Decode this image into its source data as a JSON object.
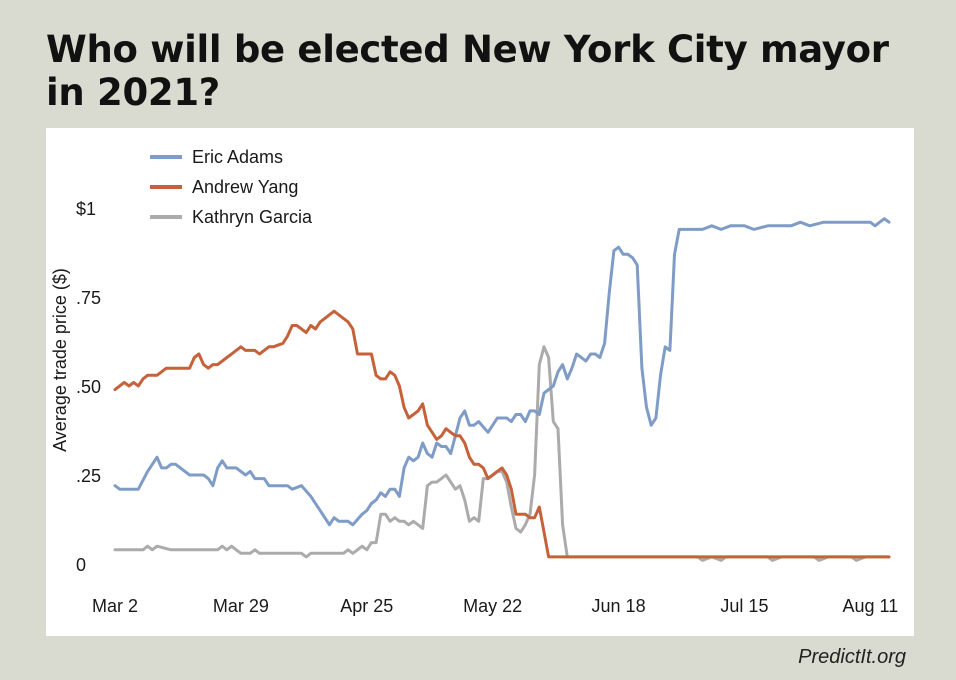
{
  "title": "Who will be elected New York City mayor in 2021?",
  "credit": "PredictIt.org",
  "chart_data": {
    "type": "line",
    "title": "Who will be elected New York City mayor in 2021?",
    "ylabel": "Average trade price ($)",
    "xlabel": "",
    "ylim": [
      0,
      1.08
    ],
    "y_ticks": [
      {
        "value": 0,
        "label": "0"
      },
      {
        "value": 0.25,
        "label": ".25"
      },
      {
        "value": 0.5,
        "label": ".50"
      },
      {
        "value": 0.75,
        "label": ".75"
      },
      {
        "value": 1,
        "label": "$1"
      }
    ],
    "x_ticks": [
      {
        "day": 0,
        "label": "Mar 2"
      },
      {
        "day": 27,
        "label": "Mar 29"
      },
      {
        "day": 54,
        "label": "Apr 25"
      },
      {
        "day": 81,
        "label": "May 22"
      },
      {
        "day": 108,
        "label": "Jun 18"
      },
      {
        "day": 135,
        "label": "Jul 15"
      },
      {
        "day": 162,
        "label": "Aug 11"
      }
    ],
    "grid": false,
    "legend": "top-left",
    "series": [
      {
        "name": "Eric Adams",
        "color": "#7f9cc6",
        "points": [
          [
            0,
            0.22
          ],
          [
            1,
            0.21
          ],
          [
            5,
            0.21
          ],
          [
            7,
            0.26
          ],
          [
            8,
            0.28
          ],
          [
            9,
            0.3
          ],
          [
            10,
            0.27
          ],
          [
            11,
            0.27
          ],
          [
            12,
            0.28
          ],
          [
            13,
            0.28
          ],
          [
            16,
            0.25
          ],
          [
            19,
            0.25
          ],
          [
            20,
            0.24
          ],
          [
            21,
            0.22
          ],
          [
            22,
            0.27
          ],
          [
            23,
            0.29
          ],
          [
            24,
            0.27
          ],
          [
            26,
            0.27
          ],
          [
            28,
            0.25
          ],
          [
            29,
            0.26
          ],
          [
            30,
            0.24
          ],
          [
            32,
            0.24
          ],
          [
            33,
            0.22
          ],
          [
            37,
            0.22
          ],
          [
            38,
            0.21
          ],
          [
            40,
            0.22
          ],
          [
            42,
            0.19
          ],
          [
            44,
            0.15
          ],
          [
            45,
            0.13
          ],
          [
            46,
            0.11
          ],
          [
            47,
            0.13
          ],
          [
            48,
            0.12
          ],
          [
            50,
            0.12
          ],
          [
            51,
            0.11
          ],
          [
            53,
            0.14
          ],
          [
            54,
            0.15
          ],
          [
            55,
            0.17
          ],
          [
            56,
            0.18
          ],
          [
            57,
            0.2
          ],
          [
            58,
            0.19
          ],
          [
            59,
            0.21
          ],
          [
            60,
            0.21
          ],
          [
            61,
            0.19
          ],
          [
            62,
            0.27
          ],
          [
            63,
            0.3
          ],
          [
            64,
            0.29
          ],
          [
            65,
            0.3
          ],
          [
            66,
            0.34
          ],
          [
            67,
            0.31
          ],
          [
            68,
            0.3
          ],
          [
            69,
            0.34
          ],
          [
            70,
            0.33
          ],
          [
            71,
            0.33
          ],
          [
            72,
            0.31
          ],
          [
            73,
            0.36
          ],
          [
            74,
            0.41
          ],
          [
            75,
            0.43
          ],
          [
            76,
            0.39
          ],
          [
            77,
            0.39
          ],
          [
            78,
            0.4
          ],
          [
            80,
            0.37
          ],
          [
            81,
            0.39
          ],
          [
            82,
            0.41
          ],
          [
            84,
            0.41
          ],
          [
            85,
            0.4
          ],
          [
            86,
            0.42
          ],
          [
            87,
            0.42
          ],
          [
            88,
            0.4
          ],
          [
            89,
            0.43
          ],
          [
            90,
            0.43
          ],
          [
            91,
            0.42
          ],
          [
            92,
            0.48
          ],
          [
            94,
            0.5
          ],
          [
            95,
            0.54
          ],
          [
            96,
            0.56
          ],
          [
            97,
            0.52
          ],
          [
            98,
            0.55
          ],
          [
            99,
            0.59
          ],
          [
            100,
            0.58
          ],
          [
            101,
            0.57
          ],
          [
            102,
            0.59
          ],
          [
            103,
            0.59
          ],
          [
            104,
            0.58
          ],
          [
            105,
            0.62
          ],
          [
            106,
            0.76
          ],
          [
            107,
            0.88
          ],
          [
            108,
            0.89
          ],
          [
            109,
            0.87
          ],
          [
            110,
            0.87
          ],
          [
            111,
            0.86
          ],
          [
            112,
            0.84
          ],
          [
            113,
            0.55
          ],
          [
            114,
            0.44
          ],
          [
            115,
            0.39
          ],
          [
            116,
            0.41
          ],
          [
            117,
            0.53
          ],
          [
            118,
            0.61
          ],
          [
            119,
            0.6
          ],
          [
            120,
            0.87
          ],
          [
            121,
            0.94
          ],
          [
            126,
            0.94
          ],
          [
            128,
            0.95
          ],
          [
            130,
            0.94
          ],
          [
            132,
            0.95
          ],
          [
            135,
            0.95
          ],
          [
            137,
            0.94
          ],
          [
            140,
            0.95
          ],
          [
            145,
            0.95
          ],
          [
            147,
            0.96
          ],
          [
            149,
            0.95
          ],
          [
            152,
            0.96
          ],
          [
            158,
            0.96
          ],
          [
            162,
            0.96
          ],
          [
            163,
            0.95
          ],
          [
            164,
            0.96
          ],
          [
            165,
            0.97
          ],
          [
            166,
            0.96
          ]
        ]
      },
      {
        "name": "Andrew Yang",
        "color": "#c6623a",
        "points": [
          [
            0,
            0.49
          ],
          [
            2,
            0.51
          ],
          [
            3,
            0.5
          ],
          [
            4,
            0.51
          ],
          [
            5,
            0.5
          ],
          [
            6,
            0.52
          ],
          [
            7,
            0.53
          ],
          [
            9,
            0.53
          ],
          [
            10,
            0.54
          ],
          [
            11,
            0.55
          ],
          [
            12,
            0.55
          ],
          [
            16,
            0.55
          ],
          [
            17,
            0.58
          ],
          [
            18,
            0.59
          ],
          [
            19,
            0.56
          ],
          [
            20,
            0.55
          ],
          [
            21,
            0.56
          ],
          [
            22,
            0.56
          ],
          [
            24,
            0.58
          ],
          [
            25,
            0.59
          ],
          [
            26,
            0.6
          ],
          [
            27,
            0.61
          ],
          [
            28,
            0.6
          ],
          [
            30,
            0.6
          ],
          [
            31,
            0.59
          ],
          [
            32,
            0.6
          ],
          [
            33,
            0.61
          ],
          [
            34,
            0.61
          ],
          [
            36,
            0.62
          ],
          [
            37,
            0.64
          ],
          [
            38,
            0.67
          ],
          [
            39,
            0.67
          ],
          [
            40,
            0.66
          ],
          [
            41,
            0.65
          ],
          [
            42,
            0.67
          ],
          [
            43,
            0.66
          ],
          [
            44,
            0.68
          ],
          [
            45,
            0.69
          ],
          [
            47,
            0.71
          ],
          [
            48,
            0.7
          ],
          [
            49,
            0.69
          ],
          [
            50,
            0.68
          ],
          [
            51,
            0.66
          ],
          [
            52,
            0.59
          ],
          [
            53,
            0.59
          ],
          [
            55,
            0.59
          ],
          [
            56,
            0.53
          ],
          [
            57,
            0.52
          ],
          [
            58,
            0.52
          ],
          [
            59,
            0.54
          ],
          [
            60,
            0.53
          ],
          [
            61,
            0.5
          ],
          [
            62,
            0.44
          ],
          [
            63,
            0.41
          ],
          [
            64,
            0.42
          ],
          [
            65,
            0.43
          ],
          [
            66,
            0.45
          ],
          [
            67,
            0.39
          ],
          [
            68,
            0.37
          ],
          [
            69,
            0.35
          ],
          [
            70,
            0.36
          ],
          [
            71,
            0.38
          ],
          [
            72,
            0.37
          ],
          [
            73,
            0.36
          ],
          [
            74,
            0.36
          ],
          [
            75,
            0.34
          ],
          [
            76,
            0.3
          ],
          [
            77,
            0.28
          ],
          [
            78,
            0.28
          ],
          [
            79,
            0.27
          ],
          [
            80,
            0.24
          ],
          [
            81,
            0.25
          ],
          [
            82,
            0.26
          ],
          [
            83,
            0.27
          ],
          [
            84,
            0.25
          ],
          [
            85,
            0.21
          ],
          [
            86,
            0.14
          ],
          [
            88,
            0.14
          ],
          [
            89,
            0.13
          ],
          [
            90,
            0.13
          ],
          [
            91,
            0.16
          ],
          [
            92,
            0.09
          ],
          [
            93,
            0.02
          ],
          [
            163,
            0.02
          ],
          [
            166,
            0.02
          ]
        ]
      },
      {
        "name": "Kathryn Garcia",
        "color": "#ababab",
        "points": [
          [
            0,
            0.04
          ],
          [
            6,
            0.04
          ],
          [
            7,
            0.05
          ],
          [
            8,
            0.04
          ],
          [
            9,
            0.05
          ],
          [
            12,
            0.04
          ],
          [
            22,
            0.04
          ],
          [
            23,
            0.05
          ],
          [
            24,
            0.04
          ],
          [
            25,
            0.05
          ],
          [
            26,
            0.04
          ],
          [
            27,
            0.03
          ],
          [
            29,
            0.03
          ],
          [
            30,
            0.04
          ],
          [
            31,
            0.03
          ],
          [
            40,
            0.03
          ],
          [
            41,
            0.02
          ],
          [
            42,
            0.03
          ],
          [
            49,
            0.03
          ],
          [
            50,
            0.04
          ],
          [
            51,
            0.03
          ],
          [
            52,
            0.04
          ],
          [
            53,
            0.05
          ],
          [
            54,
            0.04
          ],
          [
            55,
            0.06
          ],
          [
            56,
            0.06
          ],
          [
            57,
            0.14
          ],
          [
            58,
            0.14
          ],
          [
            59,
            0.12
          ],
          [
            60,
            0.13
          ],
          [
            61,
            0.12
          ],
          [
            62,
            0.12
          ],
          [
            63,
            0.11
          ],
          [
            64,
            0.12
          ],
          [
            65,
            0.11
          ],
          [
            66,
            0.1
          ],
          [
            67,
            0.22
          ],
          [
            68,
            0.23
          ],
          [
            69,
            0.23
          ],
          [
            70,
            0.24
          ],
          [
            71,
            0.25
          ],
          [
            72,
            0.23
          ],
          [
            73,
            0.21
          ],
          [
            74,
            0.22
          ],
          [
            75,
            0.18
          ],
          [
            76,
            0.12
          ],
          [
            77,
            0.13
          ],
          [
            78,
            0.12
          ],
          [
            79,
            0.24
          ],
          [
            80,
            0.24
          ],
          [
            81,
            0.25
          ],
          [
            82,
            0.26
          ],
          [
            83,
            0.26
          ],
          [
            84,
            0.23
          ],
          [
            85,
            0.16
          ],
          [
            86,
            0.1
          ],
          [
            87,
            0.09
          ],
          [
            88,
            0.11
          ],
          [
            89,
            0.14
          ],
          [
            90,
            0.25
          ],
          [
            91,
            0.56
          ],
          [
            92,
            0.61
          ],
          [
            93,
            0.58
          ],
          [
            94,
            0.4
          ],
          [
            95,
            0.38
          ],
          [
            96,
            0.11
          ],
          [
            97,
            0.02
          ],
          [
            125,
            0.02
          ],
          [
            126,
            0.01
          ],
          [
            128,
            0.02
          ],
          [
            130,
            0.01
          ],
          [
            131,
            0.02
          ],
          [
            140,
            0.02
          ],
          [
            141,
            0.01
          ],
          [
            143,
            0.02
          ],
          [
            150,
            0.02
          ],
          [
            151,
            0.01
          ],
          [
            153,
            0.02
          ],
          [
            158,
            0.02
          ],
          [
            159,
            0.01
          ],
          [
            161,
            0.02
          ],
          [
            166,
            0.02
          ]
        ]
      }
    ]
  }
}
